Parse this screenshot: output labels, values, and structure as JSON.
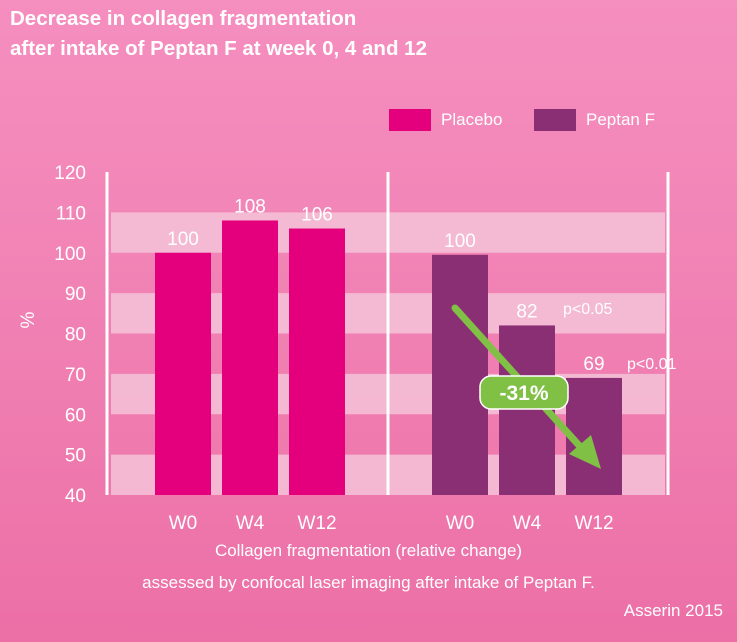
{
  "title_line1": "Decrease in collagen fragmentation",
  "title_line2": "after intake of Peptan F at week 0, 4 and 12",
  "colors": {
    "placebo": "#e4007d",
    "peptan": "#8a2f74",
    "arrow": "#80c045",
    "band": "#f4c3d8"
  },
  "chart_data": {
    "type": "bar",
    "ylabel": "%",
    "ylim": [
      40,
      120
    ],
    "yticks": [
      40,
      50,
      60,
      70,
      80,
      90,
      100,
      110,
      120
    ],
    "series": [
      {
        "name": "Placebo",
        "categories": [
          "W0",
          "W4",
          "W12"
        ],
        "values": [
          100,
          108,
          106
        ],
        "labels": [
          "100",
          "108",
          "106"
        ]
      },
      {
        "name": "Peptan F",
        "categories": [
          "W0",
          "W4",
          "W12"
        ],
        "values": [
          99.5,
          82,
          69
        ],
        "labels": [
          "100",
          "82",
          "69"
        ]
      }
    ],
    "annotations": {
      "significance": [
        "p<0.05",
        "p<0.01"
      ],
      "change_label": "-31%"
    }
  },
  "xlabel_line1": "Collagen fragmentation (relative change)",
  "xlabel_line2": "assessed by confocal laser imaging after intake of Peptan F.",
  "source": "Asserin 2015"
}
